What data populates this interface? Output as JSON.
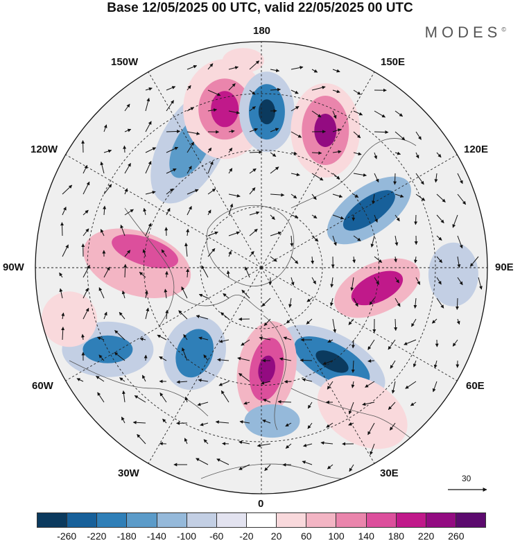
{
  "title": "Base 12/05/2025 00 UTC, valid 22/05/2025 00 UTC",
  "brand": "MODES",
  "brand_mark": "©",
  "longitude_labels": {
    "top": "180",
    "bottom": "0",
    "left": "90W",
    "right": "90E",
    "upper_left_1": "150W",
    "upper_left_2": "120W",
    "upper_right_1": "150E",
    "upper_right_2": "120E",
    "lower_left_1": "60W",
    "lower_left_2": "30W",
    "lower_right_1": "60E",
    "lower_right_2": "30E"
  },
  "reference_vector": {
    "label": "30"
  },
  "colorbar": {
    "colors": [
      "#0b3a5e",
      "#17609a",
      "#2f7fb8",
      "#5b9bc9",
      "#95b9da",
      "#c3cfe4",
      "#e3e3f0",
      "#ffffff",
      "#f9d9dc",
      "#f3b5c4",
      "#ea85ac",
      "#dc4f9c",
      "#c0198a",
      "#930b81",
      "#5c0a6e"
    ],
    "ticks": [
      "-260",
      "-220",
      "-180",
      "-140",
      "-100",
      "-60",
      "-20",
      "20",
      "60",
      "100",
      "140",
      "180",
      "220",
      "260"
    ]
  },
  "map": {
    "type": "polar stereographic anomaly field with wind vectors",
    "hemisphere": "north",
    "anomalies": [
      {
        "color": "#c3cfe4",
        "kind": "neg",
        "lon": 210,
        "r": 0.62,
        "rx": 90,
        "ry": 46,
        "rot": -62
      },
      {
        "color": "#5b9bc9",
        "kind": "neg",
        "lon": 210,
        "r": 0.62,
        "rx": 50,
        "ry": 24,
        "rot": -62
      },
      {
        "color": "#f9d9dc",
        "kind": "pos",
        "lon": 193,
        "r": 0.72,
        "rx": 60,
        "ry": 72,
        "rot": 0
      },
      {
        "color": "#ea85ac",
        "kind": "pos",
        "lon": 193,
        "r": 0.72,
        "rx": 38,
        "ry": 44,
        "rot": 0
      },
      {
        "color": "#c0198a",
        "kind": "pos",
        "lon": 193,
        "r": 0.72,
        "rx": 20,
        "ry": 26,
        "rot": 0
      },
      {
        "color": "#c3cfe4",
        "kind": "neg",
        "lon": 178,
        "r": 0.69,
        "rx": 40,
        "ry": 58,
        "rot": 0
      },
      {
        "color": "#2f7fb8",
        "kind": "neg",
        "lon": 178,
        "r": 0.69,
        "rx": 26,
        "ry": 40,
        "rot": 0
      },
      {
        "color": "#0b3a5e",
        "kind": "neg",
        "lon": 178,
        "r": 0.69,
        "rx": 12,
        "ry": 18,
        "rot": 0
      },
      {
        "color": "#f9d9dc",
        "kind": "pos",
        "lon": 155,
        "r": 0.67,
        "rx": 50,
        "ry": 68,
        "rot": 0
      },
      {
        "color": "#ea85ac",
        "kind": "pos",
        "lon": 155,
        "r": 0.67,
        "rx": 34,
        "ry": 50,
        "rot": 0
      },
      {
        "color": "#930b81",
        "kind": "pos",
        "lon": 155,
        "r": 0.67,
        "rx": 16,
        "ry": 24,
        "rot": 0
      },
      {
        "color": "#95b9da",
        "kind": "neg",
        "lon": 118,
        "r": 0.54,
        "rx": 70,
        "ry": 34,
        "rot": -35
      },
      {
        "color": "#17609a",
        "kind": "neg",
        "lon": 118,
        "r": 0.54,
        "rx": 44,
        "ry": 18,
        "rot": -35
      },
      {
        "color": "#f3b5c4",
        "kind": "pos",
        "lon": 80,
        "r": 0.52,
        "rx": 66,
        "ry": 36,
        "rot": -25
      },
      {
        "color": "#c0198a",
        "kind": "pos",
        "lon": 80,
        "r": 0.52,
        "rx": 40,
        "ry": 20,
        "rot": -25
      },
      {
        "color": "#c3cfe4",
        "kind": "neg",
        "lon": 88,
        "r": 0.85,
        "rx": 36,
        "ry": 46,
        "rot": 0
      },
      {
        "color": "#c3cfe4",
        "kind": "neg",
        "lon": 37,
        "r": 0.52,
        "rx": 84,
        "ry": 40,
        "rot": 28
      },
      {
        "color": "#2f7fb8",
        "kind": "neg",
        "lon": 37,
        "r": 0.52,
        "rx": 60,
        "ry": 26,
        "rot": 28
      },
      {
        "color": "#0b3a5e",
        "kind": "neg",
        "lon": 37,
        "r": 0.52,
        "rx": 26,
        "ry": 12,
        "rot": 28
      },
      {
        "color": "#f9d9dc",
        "kind": "pos",
        "lon": 35,
        "r": 0.78,
        "rx": 70,
        "ry": 46,
        "rot": 30
      },
      {
        "color": "#f3b5c4",
        "kind": "pos",
        "lon": 3,
        "r": 0.45,
        "rx": 42,
        "ry": 70,
        "rot": 10
      },
      {
        "color": "#dc4f9c",
        "kind": "pos",
        "lon": 3,
        "r": 0.45,
        "rx": 24,
        "ry": 46,
        "rot": 10
      },
      {
        "color": "#930b81",
        "kind": "pos",
        "lon": 3,
        "r": 0.45,
        "rx": 12,
        "ry": 20,
        "rot": 10
      },
      {
        "color": "#95b9da",
        "kind": "neg",
        "lon": 4,
        "r": 0.68,
        "rx": 40,
        "ry": 24,
        "rot": 0
      },
      {
        "color": "#c3cfe4",
        "kind": "neg",
        "lon": 322,
        "r": 0.48,
        "rx": 44,
        "ry": 54,
        "rot": 20
      },
      {
        "color": "#2f7fb8",
        "kind": "neg",
        "lon": 322,
        "r": 0.48,
        "rx": 26,
        "ry": 36,
        "rot": 20
      },
      {
        "color": "#c3cfe4",
        "kind": "neg",
        "lon": 298,
        "r": 0.77,
        "rx": 66,
        "ry": 40,
        "rot": 0
      },
      {
        "color": "#2f7fb8",
        "kind": "neg",
        "lon": 298,
        "r": 0.77,
        "rx": 36,
        "ry": 20,
        "rot": 0
      },
      {
        "color": "#f3b5c4",
        "kind": "pos",
        "lon": 268,
        "r": 0.55,
        "rx": 80,
        "ry": 46,
        "rot": 18
      },
      {
        "color": "#dc4f9c",
        "kind": "pos",
        "lon": 262,
        "r": 0.52,
        "rx": 50,
        "ry": 20,
        "rot": 18
      },
      {
        "color": "#f9d9dc",
        "kind": "pos",
        "lon": 285,
        "r": 0.88,
        "rx": 40,
        "ry": 40,
        "rot": 0
      },
      {
        "color": "#f9d9dc",
        "kind": "pos",
        "lon": 185,
        "r": 0.92,
        "rx": 30,
        "ry": 18,
        "rot": 0
      }
    ]
  }
}
